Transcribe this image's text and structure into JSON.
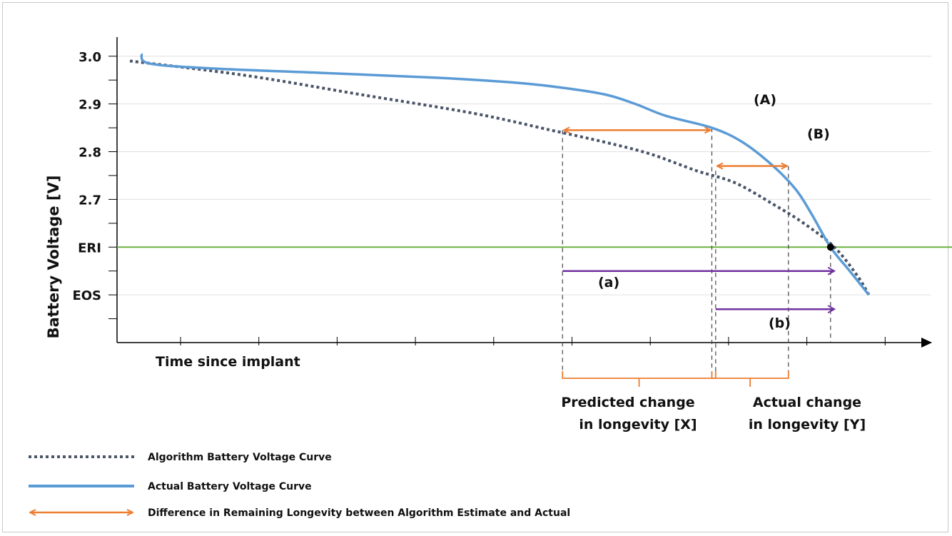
{
  "chart_data": {
    "type": "line",
    "xlabel": "Time since implant",
    "ylabel": "Battery Voltage [V]",
    "y_tick_labels": [
      "3.0",
      "2.9",
      "2.8",
      "2.7",
      "ERI",
      "EOS"
    ],
    "y_tick_values": [
      3.0,
      2.9,
      2.8,
      2.7,
      2.6,
      2.5
    ],
    "ylim": [
      2.4,
      3.04
    ],
    "xlim": [
      0,
      100
    ],
    "grid": true,
    "reference_line": {
      "label": "ERI",
      "y": 2.6,
      "color": "#6cb33f"
    },
    "series": [
      {
        "name": "Algorithm Battery Voltage Curve",
        "style": "dotted",
        "color": "#4a5568",
        "points": [
          [
            0,
            2.99
          ],
          [
            15,
            2.96
          ],
          [
            30,
            2.92
          ],
          [
            45,
            2.88
          ],
          [
            55,
            2.845
          ],
          [
            62,
            2.82
          ],
          [
            68,
            2.795
          ],
          [
            74,
            2.76
          ],
          [
            79,
            2.735
          ],
          [
            84,
            2.69
          ],
          [
            88,
            2.65
          ],
          [
            92,
            2.6
          ],
          [
            95,
            2.54
          ],
          [
            96.5,
            2.5
          ]
        ]
      },
      {
        "name": "Actual Battery Voltage Curve",
        "style": "solid",
        "color": "#5b9bd5",
        "points": [
          [
            1.5,
            3.005
          ],
          [
            2.5,
            2.985
          ],
          [
            10,
            2.975
          ],
          [
            25,
            2.965
          ],
          [
            40,
            2.955
          ],
          [
            50,
            2.945
          ],
          [
            56,
            2.935
          ],
          [
            62,
            2.92
          ],
          [
            66,
            2.9
          ],
          [
            70,
            2.875
          ],
          [
            76,
            2.85
          ],
          [
            80,
            2.82
          ],
          [
            84,
            2.77
          ],
          [
            87,
            2.72
          ],
          [
            89,
            2.67
          ],
          [
            91.5,
            2.6
          ],
          [
            94,
            2.55
          ],
          [
            96.5,
            2.5
          ]
        ]
      }
    ],
    "annotations": {
      "point_A": {
        "label": "(A)",
        "x": 76,
        "y": 2.85
      },
      "point_B": {
        "label": "(B)",
        "x": 86,
        "y": 2.77
      },
      "eri_point": {
        "x": 91.5,
        "y": 2.6
      },
      "arrow_a": {
        "label": "(a)",
        "x_start": 56.5,
        "x_end": 92,
        "y": 2.55
      },
      "arrow_b": {
        "label": "(b)",
        "x_start": 76.5,
        "x_end": 92,
        "y": 2.47
      },
      "bracket_X": {
        "label_line1": "Predicted change",
        "label_line2": "in longevity [X]",
        "x_start": 56.5,
        "x_end": 76.5
      },
      "bracket_Y": {
        "label_line1": "Actual change",
        "label_line2": "in longevity [Y]",
        "x_start": 79.5,
        "x_end": 86.5
      }
    },
    "legend": [
      {
        "label": "Algorithm Battery Voltage Curve",
        "kind": "dotted-line",
        "color": "#4a5568"
      },
      {
        "label": "Actual Battery Voltage Curve",
        "kind": "solid-line",
        "color": "#5b9bd5"
      },
      {
        "label": "Difference in Remaining Longevity between Algorithm Estimate and Actual",
        "kind": "double-arrow",
        "color": "#ed7d31"
      }
    ],
    "legend_placement": "bottom-left",
    "colors": {
      "orange": "#ed7d31",
      "purple": "#7030a0",
      "green": "#6cb33f",
      "axis": "#000000",
      "grid": "#e0e0e0"
    }
  }
}
